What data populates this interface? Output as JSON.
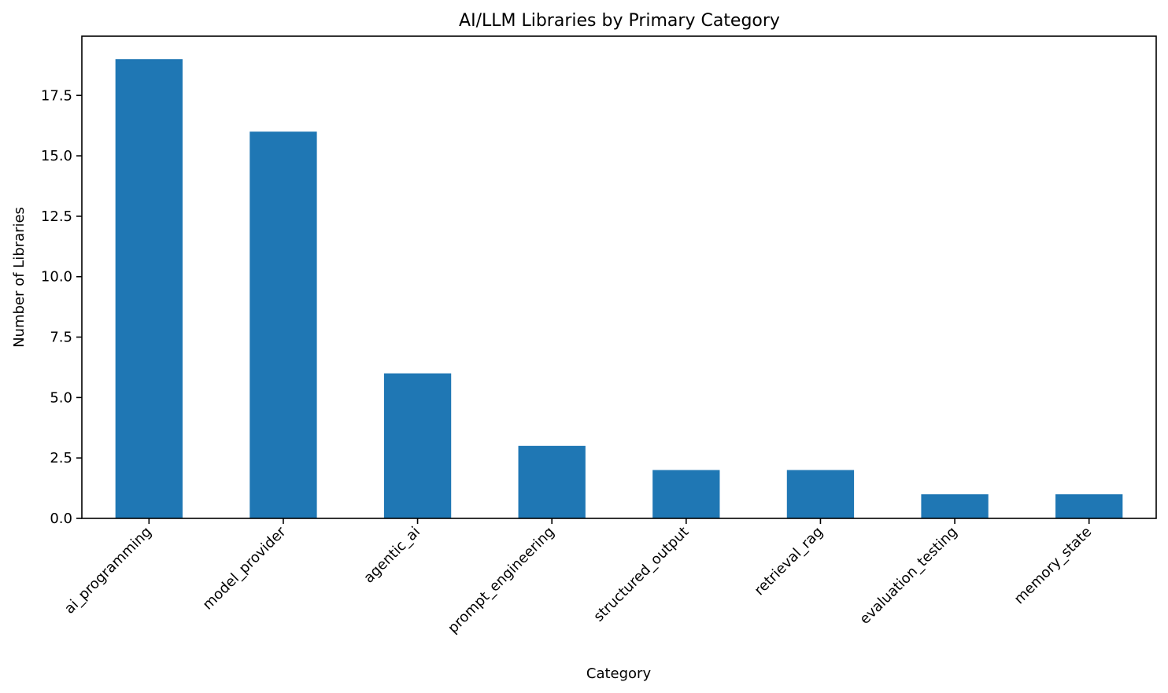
{
  "chart_data": {
    "type": "bar",
    "title": "AI/LLM Libraries by Primary Category",
    "xlabel": "Category",
    "ylabel": "Number of Libraries",
    "categories": [
      "ai_programming",
      "model_provider",
      "agentic_ai",
      "prompt_engineering",
      "structured_output",
      "retrieval_rag",
      "evaluation_testing",
      "memory_state"
    ],
    "values": [
      19,
      16,
      6,
      3,
      2,
      2,
      1,
      1
    ],
    "ylim": [
      0,
      19.95
    ],
    "yticks": [
      0.0,
      2.5,
      5.0,
      7.5,
      10.0,
      12.5,
      15.0,
      17.5
    ],
    "ytick_labels": [
      "0.0",
      "2.5",
      "5.0",
      "7.5",
      "10.0",
      "12.5",
      "15.0",
      "17.5"
    ],
    "bar_color": "#1f77b4",
    "grid": false,
    "legend": "none"
  }
}
